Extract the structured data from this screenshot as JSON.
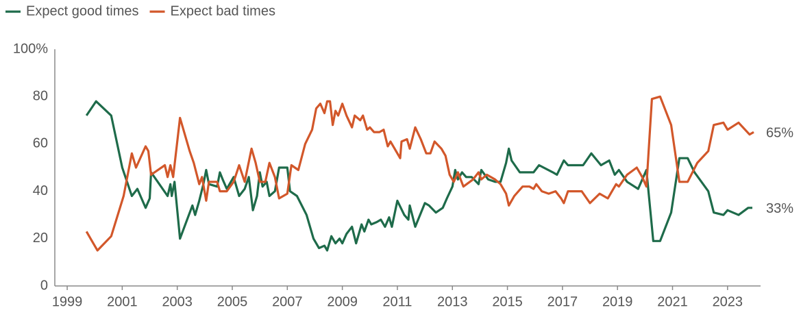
{
  "chart_data": {
    "type": "line",
    "xlim": [
      1998.55,
      2024.2
    ],
    "xticks": [
      1999,
      2001,
      2003,
      2005,
      2007,
      2009,
      2011,
      2013,
      2015,
      2017,
      2019,
      2021,
      2023
    ],
    "ylim": [
      0,
      100
    ],
    "yticks": [
      0,
      20,
      40,
      60,
      80,
      {
        "value": 100,
        "label": "100%"
      }
    ],
    "legend": "top-left",
    "series": [
      {
        "name": "Expect good times",
        "color": "#1e6b4a",
        "end_label": "33%",
        "x": [
          1999.7,
          2000.05,
          2000.6,
          2001.0,
          2001.35,
          2001.55,
          2001.85,
          2002.0,
          2002.05,
          2002.65,
          2002.75,
          2002.8,
          2002.9,
          2003.1,
          2003.55,
          2003.65,
          2003.8,
          2003.95,
          2004.05,
          2004.15,
          2004.45,
          2004.55,
          2004.65,
          2004.8,
          2005.05,
          2005.25,
          2005.45,
          2005.6,
          2005.75,
          2005.9,
          2006.0,
          2006.1,
          2006.25,
          2006.35,
          2006.55,
          2006.7,
          2007.0,
          2007.1,
          2007.35,
          2007.7,
          2007.95,
          2008.15,
          2008.35,
          2008.45,
          2008.6,
          2008.75,
          2008.9,
          2009.0,
          2009.15,
          2009.35,
          2009.5,
          2009.7,
          2009.8,
          2009.95,
          2010.05,
          2010.25,
          2010.4,
          2010.55,
          2010.7,
          2010.8,
          2011.0,
          2011.25,
          2011.4,
          2011.45,
          2011.65,
          2012.0,
          2012.15,
          2012.4,
          2012.65,
          2012.8,
          2013.0,
          2013.1,
          2013.2,
          2013.35,
          2013.5,
          2013.7,
          2013.95,
          2014.05,
          2014.3,
          2014.55,
          2014.75,
          2014.95,
          2015.05,
          2015.15,
          2015.45,
          2015.95,
          2016.15,
          2016.65,
          2016.8,
          2017.05,
          2017.2,
          2017.75,
          2018.05,
          2018.4,
          2018.7,
          2018.9,
          2019.05,
          2019.35,
          2019.75,
          2020.05,
          2020.3,
          2020.55,
          2020.95,
          2021.25,
          2021.55,
          2021.8,
          2022.3,
          2022.5,
          2022.85,
          2023.0,
          2023.4,
          2023.75,
          2023.9
        ],
        "values": [
          72,
          78,
          72,
          50,
          38,
          41,
          33,
          37,
          48,
          38,
          43,
          38,
          44,
          20,
          34,
          30,
          36,
          43,
          49,
          43,
          42,
          48,
          45,
          41,
          46,
          38,
          41,
          46,
          32,
          38,
          48,
          42,
          44,
          38,
          40,
          50,
          50,
          40,
          38,
          30,
          20,
          16,
          17,
          15,
          21,
          18,
          20,
          18,
          22,
          25,
          18,
          26,
          23,
          28,
          26,
          27,
          28,
          25,
          29,
          25,
          36,
          30,
          28,
          34,
          25,
          35,
          34,
          31,
          33,
          37,
          42,
          49,
          45,
          48,
          46,
          46,
          43,
          49,
          45,
          44,
          44,
          52,
          58,
          53,
          48,
          48,
          51,
          48,
          47,
          53,
          51,
          51,
          56,
          51,
          53,
          47,
          49,
          44,
          41,
          49,
          19,
          19,
          31,
          54,
          54,
          48,
          40,
          31,
          30,
          32,
          30,
          33,
          33
        ]
      },
      {
        "name": "Expect bad times",
        "color": "#d2572a",
        "end_label": "65%",
        "x": [
          1999.7,
          1999.9,
          2000.1,
          2000.6,
          2001.05,
          2001.35,
          2001.5,
          2001.85,
          2001.95,
          2002.05,
          2002.55,
          2002.65,
          2002.75,
          2002.85,
          2003.1,
          2003.45,
          2003.6,
          2003.8,
          2003.9,
          2004.05,
          2004.15,
          2004.45,
          2004.55,
          2004.8,
          2005.05,
          2005.25,
          2005.45,
          2005.7,
          2005.85,
          2006.0,
          2006.2,
          2006.35,
          2006.55,
          2006.7,
          2007.0,
          2007.15,
          2007.4,
          2007.65,
          2007.9,
          2008.05,
          2008.2,
          2008.35,
          2008.45,
          2008.55,
          2008.65,
          2008.75,
          2008.85,
          2009.0,
          2009.15,
          2009.35,
          2009.45,
          2009.65,
          2009.75,
          2009.9,
          2010.0,
          2010.15,
          2010.35,
          2010.5,
          2010.65,
          2010.75,
          2011.1,
          2011.15,
          2011.35,
          2011.45,
          2011.65,
          2011.85,
          2012.05,
          2012.2,
          2012.35,
          2012.6,
          2012.75,
          2012.9,
          2013.05,
          2013.2,
          2013.4,
          2013.75,
          2013.95,
          2014.05,
          2014.25,
          2014.55,
          2014.75,
          2014.95,
          2015.05,
          2015.25,
          2015.55,
          2015.8,
          2015.95,
          2016.05,
          2016.25,
          2016.5,
          2016.75,
          2016.95,
          2017.05,
          2017.2,
          2017.7,
          2018.0,
          2018.35,
          2018.65,
          2018.95,
          2019.05,
          2019.35,
          2019.7,
          2019.9,
          2020.05,
          2020.25,
          2020.55,
          2020.95,
          2021.25,
          2021.55,
          2021.9,
          2022.3,
          2022.5,
          2022.85,
          2023.0,
          2023.4,
          2023.8,
          2023.95
        ],
        "values": [
          23,
          19,
          15,
          21,
          38,
          56,
          50,
          59,
          57,
          47,
          51,
          46,
          51,
          46,
          71,
          57,
          52,
          43,
          46,
          36,
          44,
          44,
          40,
          40,
          44,
          51,
          44,
          58,
          52,
          44,
          44,
          52,
          46,
          37,
          39,
          51,
          49,
          60,
          66,
          75,
          77,
          73,
          78,
          78,
          68,
          74,
          72,
          77,
          72,
          67,
          72,
          70,
          72,
          66,
          67,
          65,
          65,
          66,
          59,
          61,
          54,
          61,
          62,
          58,
          67,
          62,
          56,
          56,
          61,
          58,
          55,
          47,
          44,
          48,
          42,
          45,
          48,
          45,
          47,
          45,
          43,
          39,
          34,
          38,
          42,
          42,
          41,
          43,
          40,
          39,
          40,
          37,
          35,
          40,
          40,
          35,
          39,
          37,
          43,
          42,
          47,
          50,
          46,
          42,
          79,
          80,
          68,
          44,
          44,
          52,
          57,
          68,
          69,
          66,
          69,
          64,
          65
        ]
      }
    ]
  }
}
